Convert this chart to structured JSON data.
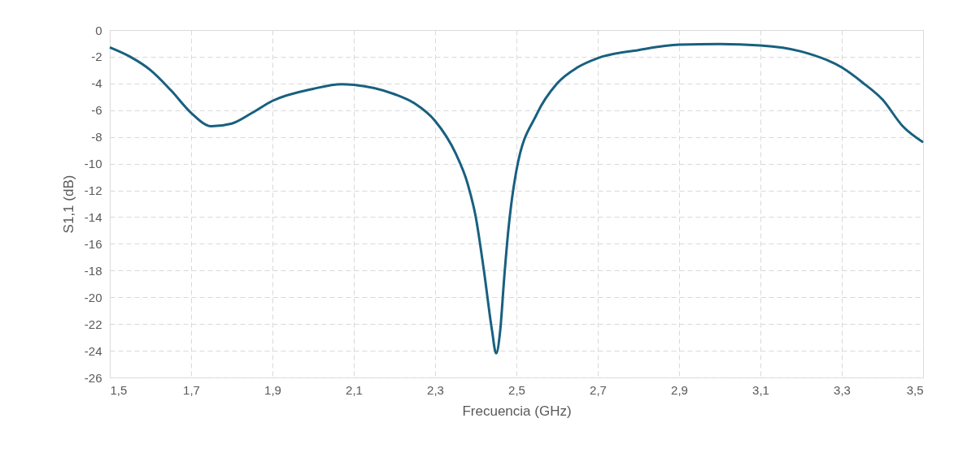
{
  "chart_data": {
    "type": "line",
    "xlabel": "Frecuencia (GHz)",
    "ylabel": "S1,1 (dB)",
    "x": [
      1.5,
      1.55,
      1.6,
      1.65,
      1.7,
      1.75,
      1.8,
      1.85,
      1.9,
      2.0,
      2.07,
      2.1,
      2.2,
      2.25,
      2.3,
      2.35,
      2.38,
      2.4,
      2.42,
      2.44,
      2.45,
      2.46,
      2.47,
      2.48,
      2.5,
      2.55,
      2.6,
      2.65,
      2.7,
      2.8,
      2.9,
      3.0,
      3.1,
      3.2,
      3.3,
      3.35,
      3.4,
      3.45,
      3.5
    ],
    "series": [
      {
        "color": "#18607f",
        "values": [
          -1.3,
          -2.0,
          -3.0,
          -4.5,
          -6.2,
          -7.2,
          -7.0,
          -6.2,
          -5.3,
          -4.4,
          -4.05,
          -4.1,
          -4.8,
          -5.5,
          -6.8,
          -9.2,
          -11.5,
          -14,
          -18,
          -22.5,
          -24.2,
          -22.5,
          -18.5,
          -15,
          -10.5,
          -6.3,
          -4.0,
          -2.8,
          -2.1,
          -1.5,
          -1.1,
          -1.05,
          -1.15,
          -1.6,
          -2.8,
          -3.9,
          -5.2,
          -7.2,
          -8.4
        ]
      }
    ],
    "xlim": [
      1.5,
      3.5
    ],
    "xticks": [
      {
        "value": 1.5,
        "label": "1,5"
      },
      {
        "value": 1.7,
        "label": "1,7"
      },
      {
        "value": 1.9,
        "label": "1,9"
      },
      {
        "value": 2.1,
        "label": "2,1"
      },
      {
        "value": 2.3,
        "label": "2,3"
      },
      {
        "value": 2.5,
        "label": "2,5"
      },
      {
        "value": 2.7,
        "label": "2,7"
      },
      {
        "value": 2.9,
        "label": "2,9"
      },
      {
        "value": 3.1,
        "label": "3,1"
      },
      {
        "value": 3.3,
        "label": "3,3"
      },
      {
        "value": 3.5,
        "label": "3,5"
      }
    ],
    "ylim": [
      -26,
      0
    ],
    "yticks": [
      0,
      -2,
      -4,
      -6,
      -8,
      -10,
      -12,
      -14,
      -16,
      -18,
      -20,
      -22,
      -24,
      -26
    ],
    "grid": true,
    "marker": "none",
    "line_style": "solid"
  }
}
